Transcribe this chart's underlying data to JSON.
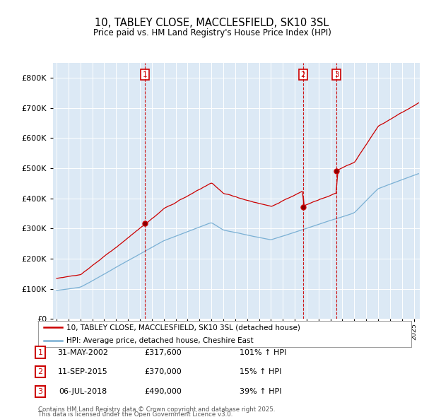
{
  "title1": "10, TABLEY CLOSE, MACCLESFIELD, SK10 3SL",
  "title2": "Price paid vs. HM Land Registry's House Price Index (HPI)",
  "legend1": "10, TABLEY CLOSE, MACCLESFIELD, SK10 3SL (detached house)",
  "legend2": "HPI: Average price, detached house, Cheshire East",
  "transactions": [
    {
      "num": 1,
      "date_str": "31-MAY-2002",
      "date_x": 2002.42,
      "price": 317600,
      "pct": "101%",
      "dir": "↑"
    },
    {
      "num": 2,
      "date_str": "11-SEP-2015",
      "date_x": 2015.69,
      "price": 370000,
      "pct": "15%",
      "dir": "↑"
    },
    {
      "num": 3,
      "date_str": "06-JUL-2018",
      "date_x": 2018.51,
      "price": 490000,
      "pct": "39%",
      "dir": "↑"
    }
  ],
  "footnote1": "Contains HM Land Registry data © Crown copyright and database right 2025.",
  "footnote2": "This data is licensed under the Open Government Licence v3.0.",
  "red_color": "#cc0000",
  "blue_color": "#7ab0d4",
  "plot_bg": "#dce9f5",
  "ylim": [
    0,
    850000
  ],
  "xlim_start": 1994.7,
  "xlim_end": 2025.5,
  "yticks": [
    0,
    100000,
    200000,
    300000,
    400000,
    500000,
    600000,
    700000,
    800000
  ]
}
